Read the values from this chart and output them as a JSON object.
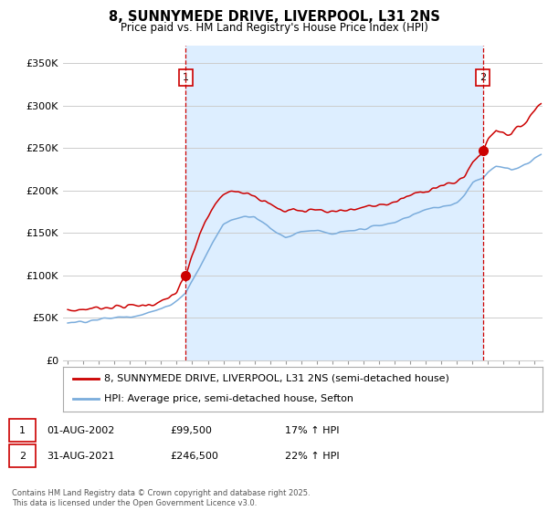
{
  "title": "8, SUNNYMEDE DRIVE, LIVERPOOL, L31 2NS",
  "subtitle": "Price paid vs. HM Land Registry's House Price Index (HPI)",
  "legend_line1": "8, SUNNYMEDE DRIVE, LIVERPOOL, L31 2NS (semi-detached house)",
  "legend_line2": "HPI: Average price, semi-detached house, Sefton",
  "footer": "Contains HM Land Registry data © Crown copyright and database right 2025.\nThis data is licensed under the Open Government Licence v3.0.",
  "annotation1_label": "1",
  "annotation1_date": "01-AUG-2002",
  "annotation1_price": "£99,500",
  "annotation1_hpi": "17% ↑ HPI",
  "annotation2_label": "2",
  "annotation2_date": "31-AUG-2021",
  "annotation2_price": "£246,500",
  "annotation2_hpi": "22% ↑ HPI",
  "red_color": "#cc0000",
  "blue_color": "#7aacdc",
  "shade_color": "#ddeeff",
  "grid_color": "#cccccc",
  "background_color": "#ffffff",
  "ylim": [
    0,
    370000
  ],
  "yticks": [
    0,
    50000,
    100000,
    150000,
    200000,
    250000,
    300000,
    350000
  ],
  "ytick_labels": [
    "£0",
    "£50K",
    "£100K",
    "£150K",
    "£200K",
    "£250K",
    "£300K",
    "£350K"
  ],
  "marker1_x": 2002.58,
  "marker1_y": 99500,
  "marker2_x": 2021.66,
  "marker2_y": 246500,
  "vline1_x": 2002.58,
  "vline2_x": 2021.66,
  "xmin": 1995.0,
  "xmax": 2025.5
}
